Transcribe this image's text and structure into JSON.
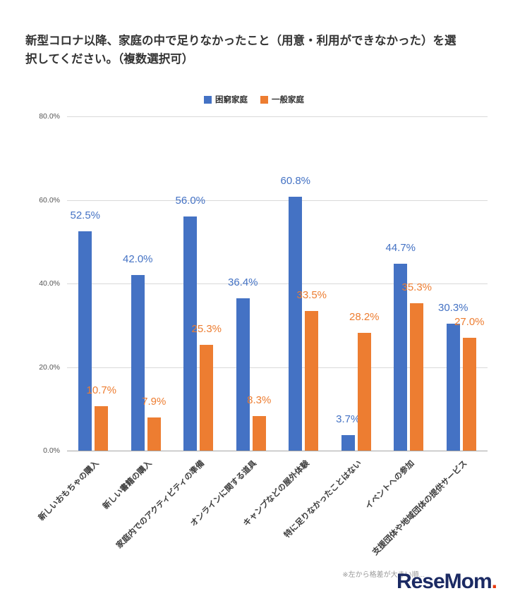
{
  "title": "新型コロナ以降、家庭の中で足りなかったこと（用意・利用ができなかった）を選択してください。（複数選択可）",
  "chart_data": {
    "type": "bar",
    "categories": [
      "新しいおもちゃの購入",
      "新しい書籍の購入",
      "家庭内でのアクティビティの準備",
      "オンラインに関する道具",
      "キャンプなどの屋外体験",
      "特に足りなかったことはない",
      "イベントへの参加",
      "支援団体や地域団体の提供サービス"
    ],
    "series": [
      {
        "name": "困窮家庭",
        "color": "#4472C4",
        "values": [
          52.5,
          42.0,
          56.0,
          36.4,
          60.8,
          3.7,
          44.7,
          30.3
        ]
      },
      {
        "name": "一般家庭",
        "color": "#ED7D31",
        "values": [
          10.7,
          7.9,
          25.3,
          8.3,
          33.5,
          28.2,
          35.3,
          27.0
        ]
      }
    ],
    "ylim": [
      0,
      80
    ],
    "yticks": [
      0,
      20,
      40,
      60,
      80
    ],
    "ytick_labels": [
      "0.0%",
      "20.0%",
      "40.0%",
      "60.0%",
      "80.0%"
    ],
    "grid": true,
    "legend_position": "top",
    "value_label_format": "0.0%"
  },
  "footnote": "※左から格差が大きい順...",
  "logo": {
    "text": "ReseMom",
    "dot": "."
  }
}
